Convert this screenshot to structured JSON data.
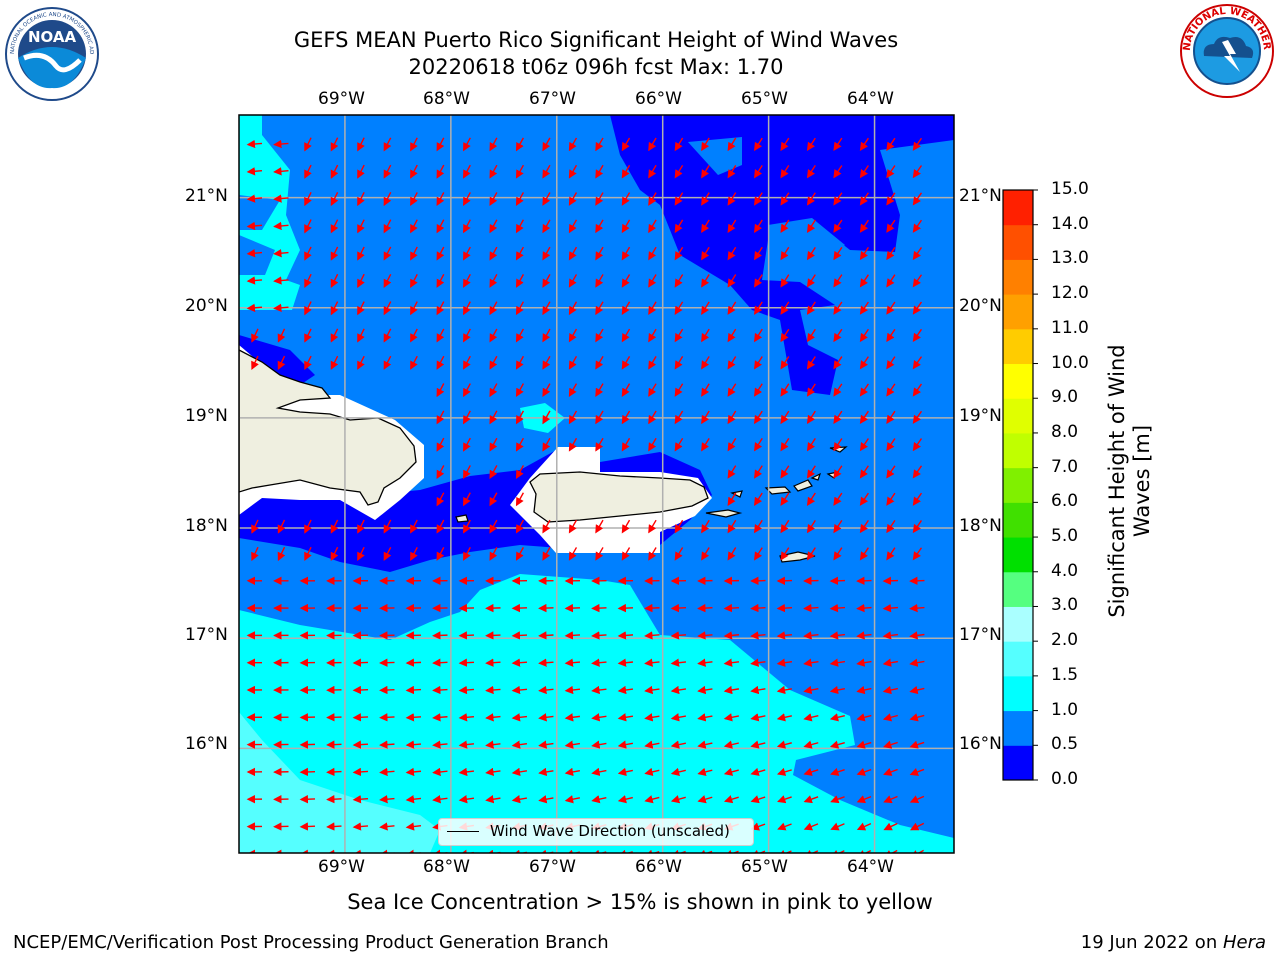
{
  "title": {
    "line1": "GEFS MEAN Puerto Rico Significant Height of Wind Waves",
    "line2": "20220618 t06z 096h fcst   Max: 1.70"
  },
  "logos": {
    "left": "noaa-logo",
    "left_text": "NOAA",
    "left_ring_text": "NATIONAL OCEANIC AND ATMOSPHERIC ADMINISTRATION · U.S. DEPARTMENT OF COMMERCE",
    "right": "national-weather-service-logo",
    "right_ring_text": "NATIONAL WEATHER SERVICE"
  },
  "map": {
    "lon_labels": [
      "69°W",
      "68°W",
      "67°W",
      "66°W",
      "65°W",
      "64°W"
    ],
    "lat_labels": [
      "21°N",
      "20°N",
      "19°N",
      "18°N",
      "17°N",
      "16°N"
    ],
    "lon_range": [
      -70,
      -63.25
    ],
    "lat_range": [
      15.05,
      21.75
    ],
    "land_color": "#efefe0",
    "arrow_color": "#ff0000",
    "legend_label": "Wind Wave Direction (unscaled)"
  },
  "colorbar": {
    "title": "Significant Height of Wind Waves [m]",
    "title_line1": "Significant Height of Wind",
    "title_line2": "Waves [m]",
    "tick_labels": [
      "0.0",
      "0.5",
      "1.0",
      "1.5",
      "2.0",
      "3.0",
      "4.0",
      "5.0",
      "6.0",
      "7.0",
      "8.0",
      "9.0",
      "10.0",
      "11.0",
      "12.0",
      "13.0",
      "14.0",
      "15.0"
    ],
    "colors": [
      "#0000ff",
      "#0080ff",
      "#00ffff",
      "#55ffff",
      "#aaffff",
      "#55ff80",
      "#00e000",
      "#40e000",
      "#80f000",
      "#c0ff00",
      "#e0ff00",
      "#ffff00",
      "#ffcc00",
      "#ffa000",
      "#ff8000",
      "#ff5000",
      "#ff2000",
      "#ff0000"
    ]
  },
  "note": "Sea Ice Concentration > 15% is shown in pink to yellow",
  "footer": {
    "left": "NCEP/EMC/Verification Post Processing Product Generation Branch",
    "right_prefix": "19 Jun 2022 on ",
    "right_host": "Hera"
  }
}
